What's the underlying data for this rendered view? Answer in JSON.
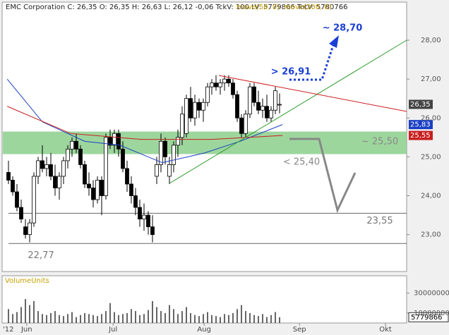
{
  "chart_data": {
    "type": "candlestick",
    "header_text": "EMC Corporation C: 26,35 O: 26,35 H: 26,63 L: 26,12 -0,06 TckV: 100 LV: 5779866 TotV: 5780766",
    "legend_color": "#c8a000",
    "candles": [
      [
        24.6,
        24.9,
        24.3,
        24.4
      ],
      [
        24.4,
        24.5,
        24.0,
        24.1
      ],
      [
        24.1,
        24.3,
        23.6,
        23.7
      ],
      [
        23.7,
        23.9,
        23.3,
        23.4
      ],
      [
        23.2,
        23.4,
        22.9,
        23.0
      ],
      [
        23.0,
        23.4,
        22.8,
        23.3
      ],
      [
        23.3,
        24.6,
        23.2,
        24.5
      ],
      [
        24.5,
        25.0,
        24.3,
        24.9
      ],
      [
        24.9,
        25.3,
        24.6,
        24.7
      ],
      [
        24.7,
        25.0,
        24.5,
        24.8
      ],
      [
        24.8,
        25.1,
        24.4,
        24.5
      ],
      [
        24.5,
        24.8,
        24.0,
        24.2
      ],
      [
        24.2,
        24.6,
        23.9,
        24.5
      ],
      [
        24.5,
        25.0,
        24.3,
        24.9
      ],
      [
        24.9,
        25.3,
        24.7,
        25.2
      ],
      [
        25.2,
        25.5,
        25.0,
        25.4
      ],
      [
        25.4,
        25.6,
        25.1,
        25.2
      ],
      [
        25.2,
        25.3,
        24.7,
        24.8
      ],
      [
        24.8,
        24.9,
        24.2,
        24.3
      ],
      [
        24.3,
        24.6,
        24.0,
        24.2
      ],
      [
        24.2,
        24.4,
        23.7,
        23.9
      ],
      [
        23.9,
        24.5,
        23.8,
        24.4
      ],
      [
        24.4,
        24.5,
        23.5,
        24.0
      ],
      [
        24.0,
        25.6,
        23.9,
        25.5
      ],
      [
        25.5,
        25.7,
        25.2,
        25.3
      ],
      [
        25.3,
        25.7,
        25.1,
        25.6
      ],
      [
        25.6,
        25.7,
        25.0,
        25.2
      ],
      [
        25.2,
        25.4,
        24.6,
        24.7
      ],
      [
        24.7,
        24.9,
        24.1,
        24.3
      ],
      [
        24.3,
        24.5,
        23.8,
        24.0
      ],
      [
        24.0,
        24.2,
        23.5,
        23.7
      ],
      [
        23.7,
        23.9,
        23.2,
        23.4
      ],
      [
        23.4,
        23.8,
        23.1,
        23.5
      ],
      [
        23.5,
        23.6,
        23.0,
        23.2
      ],
      [
        23.2,
        23.5,
        22.8,
        23.0
      ],
      [
        24.5,
        25.0,
        24.3,
        24.8
      ],
      [
        24.8,
        25.6,
        24.6,
        25.4
      ],
      [
        25.4,
        25.5,
        24.8,
        25.0
      ],
      [
        24.5,
        25.0,
        24.3,
        24.8
      ],
      [
        24.8,
        25.4,
        24.6,
        25.3
      ],
      [
        25.3,
        25.7,
        25.0,
        25.5
      ],
      [
        25.5,
        26.3,
        25.3,
        26.1
      ],
      [
        25.6,
        26.6,
        25.5,
        26.5
      ],
      [
        26.5,
        26.8,
        25.9,
        26.0
      ],
      [
        26.0,
        26.6,
        25.8,
        26.4
      ],
      [
        26.4,
        26.5,
        26.0,
        26.2
      ],
      [
        26.2,
        26.5,
        25.9,
        26.4
      ],
      [
        26.4,
        26.9,
        26.3,
        26.8
      ],
      [
        26.8,
        27.0,
        26.6,
        26.9
      ],
      [
        26.9,
        27.1,
        26.7,
        26.8
      ],
      [
        26.8,
        27.0,
        26.6,
        26.9
      ],
      [
        26.9,
        27.1,
        26.7,
        27.0
      ],
      [
        27.0,
        27.1,
        26.8,
        26.9
      ],
      [
        26.9,
        27.0,
        26.5,
        26.6
      ],
      [
        26.6,
        26.7,
        25.9,
        26.0
      ],
      [
        26.0,
        26.1,
        25.5,
        25.6
      ],
      [
        25.6,
        26.2,
        25.5,
        26.1
      ],
      [
        26.1,
        26.9,
        26.0,
        26.8
      ],
      [
        26.8,
        26.9,
        26.3,
        26.4
      ],
      [
        26.4,
        26.7,
        26.1,
        26.2
      ],
      [
        26.2,
        26.5,
        26.0,
        26.3
      ],
      [
        26.3,
        26.6,
        25.9,
        26.0
      ],
      [
        26.0,
        26.3,
        25.9,
        26.2
      ],
      [
        26.2,
        26.8,
        26.1,
        26.7
      ],
      [
        26.35,
        26.63,
        26.12,
        26.35
      ]
    ],
    "moving_averages": [
      {
        "name": "move(50, 0)",
        "color": "#1a3fc4",
        "x": [
          -0.3,
          8,
          18,
          26.3,
          36.3,
          46.3,
          54.7,
          64.7
        ],
        "values": [
          27.0,
          25.9,
          25.4,
          25.3,
          24.85,
          25.1,
          25.4,
          25.83
        ]
      },
      {
        "name": "move(200, 0)",
        "color": "#c81e1e",
        "x": [
          -0.3,
          14.7,
          31.3,
          48,
          64.7
        ],
        "values": [
          26.3,
          25.6,
          25.45,
          25.45,
          25.55
        ]
      }
    ],
    "xlim": [
      -1.5,
      94
    ],
    "xticks": [
      {
        "value": 4.3,
        "label": "Jun"
      },
      {
        "value": 24.7,
        "label": "Jul"
      },
      {
        "value": 46.2,
        "label": "Aug"
      },
      {
        "value": 68.7,
        "label": "Sep"
      },
      {
        "value": 89,
        "label": "Okt"
      }
    ],
    "year_label": "'12",
    "ylim": [
      22.05,
      28.98
    ],
    "yticks": [
      {
        "value": 23,
        "label": "23,00"
      },
      {
        "value": 24,
        "label": "24,00"
      },
      {
        "value": 25,
        "label": "25,00"
      },
      {
        "value": 26,
        "label": "26,00"
      },
      {
        "value": 27,
        "label": "27,00"
      },
      {
        "value": 28,
        "label": "28,00"
      }
    ],
    "price_tags": [
      {
        "value": 26.35,
        "label": "26,35",
        "color": "#444444"
      },
      {
        "value": 25.83,
        "label": "25,83",
        "color": "#1a3fc4"
      },
      {
        "value": 25.55,
        "label": "25,55",
        "color": "#c81e1e"
      }
    ],
    "zone": [
      25.07,
      25.65
    ],
    "levels": [
      {
        "value": 23.55,
        "label": "23,55"
      },
      {
        "value": 22.77,
        "label": "22,77"
      }
    ],
    "annotations": [
      "~ 25,50",
      "< 25,40",
      "> 26,91",
      "~ 28,70"
    ],
    "volume": {
      "title": "VolumeUnits",
      "ylim": [
        0,
        46000000
      ],
      "yticks": [
        10000000,
        30000000
      ],
      "values": [
        14000000,
        9000000,
        11000000,
        16000000,
        24000000,
        18000000,
        22000000,
        12000000,
        9000000,
        8000000,
        10000000,
        12000000,
        8000000,
        7000000,
        9000000,
        11000000,
        6000000,
        8000000,
        10000000,
        9000000,
        8000000,
        7000000,
        9000000,
        12000000,
        20000000,
        11000000,
        8000000,
        9000000,
        10000000,
        14000000,
        12000000,
        8000000,
        9000000,
        13000000,
        22000000,
        16000000,
        12000000,
        10000000,
        18000000,
        14000000,
        9000000,
        12000000,
        16000000,
        10000000,
        8000000,
        7000000,
        9000000,
        11000000,
        8000000,
        7000000,
        6000000,
        9000000,
        8000000,
        10000000,
        14000000,
        18000000,
        12000000,
        10000000,
        8000000,
        7000000,
        9000000,
        6000000,
        8000000,
        11000000,
        5779866
      ]
    }
  }
}
